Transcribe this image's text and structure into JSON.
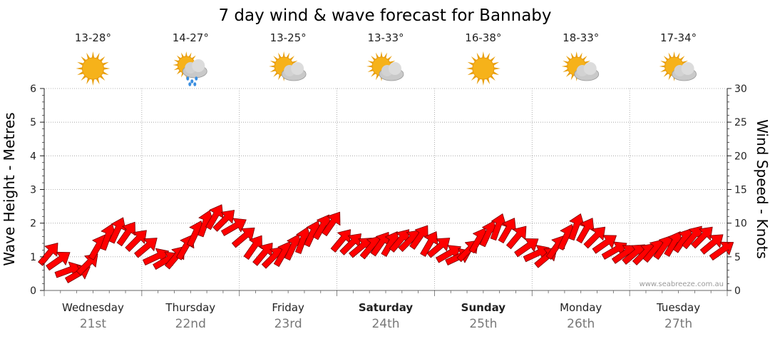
{
  "chart_data": {
    "type": "line",
    "title": "7 day wind & wave forecast for Bannaby",
    "ylabel_left": "Wave Height - Metres",
    "ylabel_right": "Wind Speed - Knots",
    "ylim_left": [
      0,
      6
    ],
    "ylim_right": [
      0,
      30
    ],
    "yticks_left": [
      "0",
      "1",
      "2",
      "3",
      "4",
      "5",
      "6"
    ],
    "yticks_right": [
      "0",
      "5",
      "10",
      "15",
      "20",
      "25",
      "30"
    ],
    "grid": true,
    "days": [
      {
        "day": "Wednesday",
        "date": "21st",
        "bold": false,
        "temp": "13-28°",
        "icon": "sun-icon"
      },
      {
        "day": "Thursday",
        "date": "22nd",
        "bold": false,
        "temp": "14-27°",
        "icon": "rain-cloud-icon"
      },
      {
        "day": "Friday",
        "date": "23rd",
        "bold": false,
        "temp": "13-25°",
        "icon": "partly-cloudy-icon"
      },
      {
        "day": "Saturday",
        "date": "24th",
        "bold": true,
        "temp": "13-33°",
        "icon": "partly-cloudy-icon"
      },
      {
        "day": "Sunday",
        "date": "25th",
        "bold": true,
        "temp": "16-38°",
        "icon": "sun-icon"
      },
      {
        "day": "Monday",
        "date": "26th",
        "bold": false,
        "temp": "18-33°",
        "icon": "partly-cloudy-icon"
      },
      {
        "day": "Tuesday",
        "date": "27th",
        "bold": false,
        "temp": "17-34°",
        "icon": "partly-cloudy-icon"
      }
    ],
    "wind_series": {
      "name": "Wind Speed - Knots",
      "color": "#ff0000",
      "x_day": [
        0,
        0.1,
        0.2,
        0.3,
        0.4,
        0.5,
        0.6,
        0.7,
        0.8,
        0.9,
        1.0,
        1.1,
        1.2,
        1.3,
        1.4,
        1.5,
        1.6,
        1.7,
        1.8,
        1.9,
        2.0,
        2.1,
        2.2,
        2.3,
        2.4,
        2.5,
        2.6,
        2.7,
        2.8,
        2.9,
        3.0,
        3.1,
        3.2,
        3.3,
        3.4,
        3.5,
        3.6,
        3.7,
        3.8,
        3.9,
        4.0,
        4.1,
        4.2,
        4.3,
        4.4,
        4.5,
        4.6,
        4.7,
        4.8,
        4.9,
        5.0,
        5.1,
        5.2,
        5.3,
        5.4,
        5.5,
        5.6,
        5.7,
        5.8,
        5.9,
        6.0,
        6.1,
        6.2,
        6.3,
        6.4,
        6.5,
        6.6,
        6.7,
        6.8,
        6.9
      ],
      "knots": [
        5.5,
        4.5,
        3,
        2.5,
        4,
        6.5,
        8,
        9,
        8.5,
        7.5,
        6.5,
        5,
        4.5,
        5,
        6.5,
        8.5,
        10,
        11,
        10.5,
        9.5,
        8,
        6.5,
        5.5,
        5,
        5.5,
        6.5,
        7.5,
        8.5,
        9.5,
        10,
        7.5,
        7,
        6.5,
        6.5,
        7,
        7,
        7.5,
        7.5,
        8,
        7,
        6.5,
        5.5,
        5,
        6,
        7.5,
        8.5,
        9.5,
        9,
        8,
        6.5,
        5.5,
        5,
        6.5,
        8,
        9.5,
        9,
        8,
        7,
        6,
        5.5,
        5.5,
        5.5,
        6,
        6.5,
        7,
        7.5,
        8,
        8,
        7,
        6
      ]
    },
    "wind_arrow_angles_deg": [
      40,
      55,
      70,
      60,
      45,
      30,
      20,
      25,
      35,
      45,
      50,
      65,
      60,
      40,
      30,
      25,
      20,
      30,
      45,
      60,
      50,
      35,
      40,
      45,
      30,
      25,
      20,
      25,
      30,
      35,
      40,
      45,
      50,
      40,
      35,
      30,
      40,
      45,
      35,
      30,
      50,
      60,
      65,
      45,
      30,
      25,
      20,
      30,
      40,
      55,
      65,
      50,
      35,
      25,
      20,
      30,
      45,
      55,
      60,
      55,
      50,
      45,
      40,
      35,
      30,
      35,
      40,
      45,
      50,
      55
    ],
    "credit": "www.seabreeze.com.au"
  }
}
